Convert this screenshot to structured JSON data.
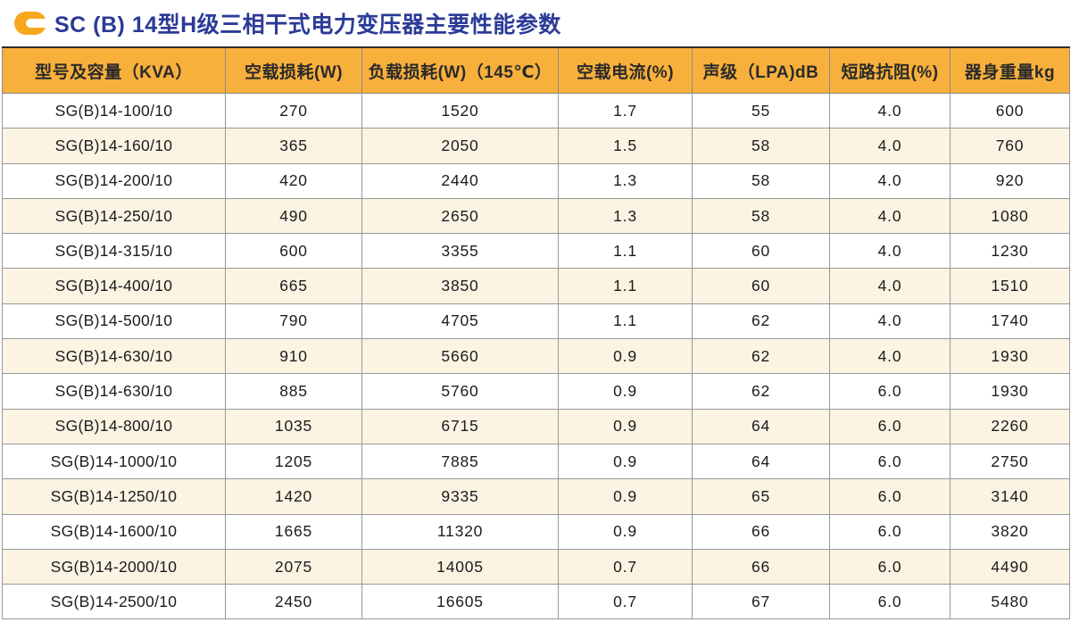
{
  "header": {
    "title": "SC (B) 14型H级三相干式电力变压器主要性能参数",
    "title_color": "#2b3a97",
    "icon": "c-arrow-icon",
    "icon_color": "#f8a81f"
  },
  "table": {
    "header_bg": "#f8b03c",
    "stripe_bg": "#fbf4e3",
    "columns": [
      "型号及容量（KVA）",
      "空载损耗(W)",
      "负载损耗(W)（145℃）",
      "空载电流(%)",
      "声级（LPA)dB",
      "短路抗阻(%)",
      "器身重量kg"
    ],
    "rows": [
      [
        "SG(B)14-100/10",
        "270",
        "1520",
        "1.7",
        "55",
        "4.0",
        "600"
      ],
      [
        "SG(B)14-160/10",
        "365",
        "2050",
        "1.5",
        "58",
        "4.0",
        "760"
      ],
      [
        "SG(B)14-200/10",
        "420",
        "2440",
        "1.3",
        "58",
        "4.0",
        "920"
      ],
      [
        "SG(B)14-250/10",
        "490",
        "2650",
        "1.3",
        "58",
        "4.0",
        "1080"
      ],
      [
        "SG(B)14-315/10",
        "600",
        "3355",
        "1.1",
        "60",
        "4.0",
        "1230"
      ],
      [
        "SG(B)14-400/10",
        "665",
        "3850",
        "1.1",
        "60",
        "4.0",
        "1510"
      ],
      [
        "SG(B)14-500/10",
        "790",
        "4705",
        "1.1",
        "62",
        "4.0",
        "1740"
      ],
      [
        "SG(B)14-630/10",
        "910",
        "5660",
        "0.9",
        "62",
        "4.0",
        "1930"
      ],
      [
        "SG(B)14-630/10",
        "885",
        "5760",
        "0.9",
        "62",
        "6.0",
        "1930"
      ],
      [
        "SG(B)14-800/10",
        "1035",
        "6715",
        "0.9",
        "64",
        "6.0",
        "2260"
      ],
      [
        "SG(B)14-1000/10",
        "1205",
        "7885",
        "0.9",
        "64",
        "6.0",
        "2750"
      ],
      [
        "SG(B)14-1250/10",
        "1420",
        "9335",
        "0.9",
        "65",
        "6.0",
        "3140"
      ],
      [
        "SG(B)14-1600/10",
        "1665",
        "11320",
        "0.9",
        "66",
        "6.0",
        "3820"
      ],
      [
        "SG(B)14-2000/10",
        "2075",
        "14005",
        "0.7",
        "66",
        "6.0",
        "4490"
      ],
      [
        "SG(B)14-2500/10",
        "2450",
        "16605",
        "0.7",
        "67",
        "6.0",
        "5480"
      ]
    ]
  }
}
